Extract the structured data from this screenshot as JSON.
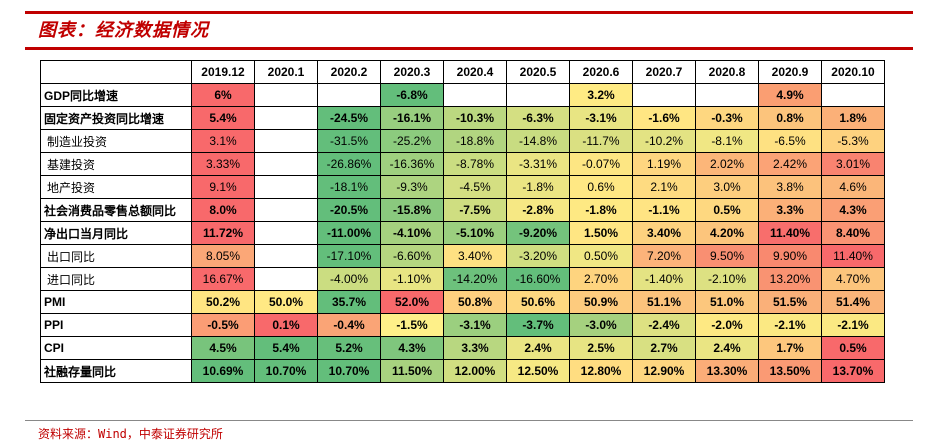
{
  "title": "图表：经济数据情况",
  "source": "资料来源：Wind，中泰证券研究所",
  "columns": [
    "2019.12",
    "2020.1",
    "2020.2",
    "2020.3",
    "2020.4",
    "2020.5",
    "2020.6",
    "2020.7",
    "2020.8",
    "2020.9",
    "2020.10"
  ],
  "rows": [
    {
      "label": "GDP同比增速",
      "bold": true,
      "cells": [
        {
          "v": "6%",
          "c": "#f8696b"
        },
        {
          "v": "",
          "c": "#ffffff"
        },
        {
          "v": "",
          "c": "#ffffff"
        },
        {
          "v": "-6.8%",
          "c": "#63be7b"
        },
        {
          "v": "",
          "c": "#ffffff"
        },
        {
          "v": "",
          "c": "#ffffff"
        },
        {
          "v": "3.2%",
          "c": "#ffeb84"
        },
        {
          "v": "",
          "c": "#ffffff"
        },
        {
          "v": "",
          "c": "#ffffff"
        },
        {
          "v": "4.9%",
          "c": "#fa9e72"
        },
        {
          "v": "",
          "c": "#ffffff"
        }
      ]
    },
    {
      "label": "固定资产投资同比增速",
      "bold": true,
      "cells": [
        {
          "v": "5.4%",
          "c": "#f8696b"
        },
        {
          "v": "",
          "c": "#ffffff"
        },
        {
          "v": "-24.5%",
          "c": "#63be7b"
        },
        {
          "v": "-16.1%",
          "c": "#98ce7f"
        },
        {
          "v": "-10.3%",
          "c": "#bbd880"
        },
        {
          "v": "-6.3%",
          "c": "#d4df82"
        },
        {
          "v": "-3.1%",
          "c": "#e8e583"
        },
        {
          "v": "-1.6%",
          "c": "#ffe683"
        },
        {
          "v": "-0.3%",
          "c": "#fed780"
        },
        {
          "v": "0.8%",
          "c": "#fcc47c"
        },
        {
          "v": "1.8%",
          "c": "#fbb078"
        }
      ]
    },
    {
      "label": "制造业投资",
      "bold": false,
      "cells": [
        {
          "v": "3.1%",
          "c": "#f8696b"
        },
        {
          "v": "",
          "c": "#ffffff"
        },
        {
          "v": "-31.5%",
          "c": "#63be7b"
        },
        {
          "v": "-25.2%",
          "c": "#8ccb7e"
        },
        {
          "v": "-18.8%",
          "c": "#b1d580"
        },
        {
          "v": "-14.8%",
          "c": "#c8dc81"
        },
        {
          "v": "-11.7%",
          "c": "#dae082"
        },
        {
          "v": "-10.2%",
          "c": "#e3e383"
        },
        {
          "v": "-8.1%",
          "c": "#f0e784"
        },
        {
          "v": "-6.5%",
          "c": "#fee182"
        },
        {
          "v": "-5.3%",
          "c": "#fed27f"
        }
      ]
    },
    {
      "label": "基建投资",
      "bold": false,
      "cells": [
        {
          "v": "3.33%",
          "c": "#f8696b"
        },
        {
          "v": "",
          "c": "#ffffff"
        },
        {
          "v": "-26.86%",
          "c": "#63be7b"
        },
        {
          "v": "-16.36%",
          "c": "#9fd07f"
        },
        {
          "v": "-8.78%",
          "c": "#cadd81"
        },
        {
          "v": "-3.31%",
          "c": "#eae583"
        },
        {
          "v": "-0.07%",
          "c": "#fde683"
        },
        {
          "v": "1.19%",
          "c": "#fed680"
        },
        {
          "v": "2.02%",
          "c": "#fcb679"
        },
        {
          "v": "2.42%",
          "c": "#fba376"
        },
        {
          "v": "3.01%",
          "c": "#f98370"
        }
      ]
    },
    {
      "label": "地产投资",
      "bold": false,
      "cells": [
        {
          "v": "9.1%",
          "c": "#f8696b"
        },
        {
          "v": "",
          "c": "#ffffff"
        },
        {
          "v": "-18.1%",
          "c": "#63be7b"
        },
        {
          "v": "-9.3%",
          "c": "#add480"
        },
        {
          "v": "-4.5%",
          "c": "#d4df82"
        },
        {
          "v": "-1.8%",
          "c": "#ebe583"
        },
        {
          "v": "0.6%",
          "c": "#ffe884"
        },
        {
          "v": "2.1%",
          "c": "#fedb81"
        },
        {
          "v": "3.0%",
          "c": "#fdce7e"
        },
        {
          "v": "3.8%",
          "c": "#fcc27c"
        },
        {
          "v": "4.6%",
          "c": "#fbb679"
        }
      ]
    },
    {
      "label": "社会消费品零售总额同比",
      "bold": true,
      "cells": [
        {
          "v": "8.0%",
          "c": "#f8696b"
        },
        {
          "v": "",
          "c": "#ffffff"
        },
        {
          "v": "-20.5%",
          "c": "#63be7b"
        },
        {
          "v": "-15.8%",
          "c": "#8ac97e"
        },
        {
          "v": "-7.5%",
          "c": "#cfde81"
        },
        {
          "v": "-2.8%",
          "c": "#f6e884"
        },
        {
          "v": "-1.8%",
          "c": "#fee983"
        },
        {
          "v": "-1.1%",
          "c": "#ffe483"
        },
        {
          "v": "0.5%",
          "c": "#fed880"
        },
        {
          "v": "3.3%",
          "c": "#fbb078"
        },
        {
          "v": "4.3%",
          "c": "#fa9f75"
        }
      ]
    },
    {
      "label": "净出口当月同比",
      "bold": true,
      "cells": [
        {
          "v": "11.72%",
          "c": "#f8696b"
        },
        {
          "v": "",
          "c": "#ffffff"
        },
        {
          "v": "-11.00%",
          "c": "#63be7b"
        },
        {
          "v": "-4.10%",
          "c": "#a5d17f"
        },
        {
          "v": "-5.10%",
          "c": "#9bcf7f"
        },
        {
          "v": "-9.20%",
          "c": "#74c37c"
        },
        {
          "v": "1.50%",
          "c": "#ffe683"
        },
        {
          "v": "3.40%",
          "c": "#fdd27f"
        },
        {
          "v": "4.20%",
          "c": "#fcc57c"
        },
        {
          "v": "11.40%",
          "c": "#f86e6c"
        },
        {
          "v": "8.40%",
          "c": "#fa9373"
        }
      ]
    },
    {
      "label": "出口同比",
      "bold": false,
      "cells": [
        {
          "v": "8.05%",
          "c": "#fba777"
        },
        {
          "v": "",
          "c": "#ffffff"
        },
        {
          "v": "-17.10%",
          "c": "#63be7b"
        },
        {
          "v": "-6.60%",
          "c": "#b5d680"
        },
        {
          "v": "3.40%",
          "c": "#fee182"
        },
        {
          "v": "-3.20%",
          "c": "#d0de81"
        },
        {
          "v": "0.50%",
          "c": "#f0e784"
        },
        {
          "v": "7.20%",
          "c": "#fcb37a"
        },
        {
          "v": "9.50%",
          "c": "#f98f72"
        },
        {
          "v": "9.90%",
          "c": "#f9896f"
        },
        {
          "v": "11.40%",
          "c": "#f8696b"
        }
      ]
    },
    {
      "label": "进口同比",
      "bold": false,
      "cells": [
        {
          "v": "16.67%",
          "c": "#f8696b"
        },
        {
          "v": "",
          "c": "#ffffff"
        },
        {
          "v": "-4.00%",
          "c": "#cbdd81"
        },
        {
          "v": "-1.10%",
          "c": "#e8e583"
        },
        {
          "v": "-14.20%",
          "c": "#6dc17c"
        },
        {
          "v": "-16.60%",
          "c": "#63be7b"
        },
        {
          "v": "2.70%",
          "c": "#fed47f"
        },
        {
          "v": "-1.40%",
          "c": "#e4e383"
        },
        {
          "v": "-2.10%",
          "c": "#dde182"
        },
        {
          "v": "13.20%",
          "c": "#f99372"
        },
        {
          "v": "4.70%",
          "c": "#fcc57c"
        }
      ]
    },
    {
      "label": "PMI",
      "bold": true,
      "cells": [
        {
          "v": "50.2%",
          "c": "#ffe582"
        },
        {
          "v": "50.0%",
          "c": "#ffe984"
        },
        {
          "v": "35.7%",
          "c": "#63be7b"
        },
        {
          "v": "52.0%",
          "c": "#f8696b"
        },
        {
          "v": "50.8%",
          "c": "#fed07f"
        },
        {
          "v": "50.6%",
          "c": "#fed880"
        },
        {
          "v": "50.9%",
          "c": "#fdcb7e"
        },
        {
          "v": "51.1%",
          "c": "#fcc37c"
        },
        {
          "v": "51.0%",
          "c": "#fcc77d"
        },
        {
          "v": "51.5%",
          "c": "#fab079"
        },
        {
          "v": "51.4%",
          "c": "#fab479"
        }
      ]
    },
    {
      "label": "PPI",
      "bold": true,
      "cells": [
        {
          "v": "-0.5%",
          "c": "#fb9d75"
        },
        {
          "v": "0.1%",
          "c": "#f8696b"
        },
        {
          "v": "-0.4%",
          "c": "#faa476"
        },
        {
          "v": "-1.5%",
          "c": "#fef089"
        },
        {
          "v": "-3.1%",
          "c": "#9bcf7f"
        },
        {
          "v": "-3.7%",
          "c": "#63be7b"
        },
        {
          "v": "-3.0%",
          "c": "#a5d17f"
        },
        {
          "v": "-2.4%",
          "c": "#dde182"
        },
        {
          "v": "-2.0%",
          "c": "#fee983"
        },
        {
          "v": "-2.1%",
          "c": "#fbe983"
        },
        {
          "v": "-2.1%",
          "c": "#fbe983"
        }
      ]
    },
    {
      "label": "CPI",
      "bold": true,
      "cells": [
        {
          "v": "4.5%",
          "c": "#78c47c"
        },
        {
          "v": "5.4%",
          "c": "#63be7b"
        },
        {
          "v": "5.2%",
          "c": "#67bf7b"
        },
        {
          "v": "4.3%",
          "c": "#7fc67d"
        },
        {
          "v": "3.3%",
          "c": "#b8d780"
        },
        {
          "v": "2.4%",
          "c": "#eae583"
        },
        {
          "v": "2.5%",
          "c": "#e7e483"
        },
        {
          "v": "2.7%",
          "c": "#d8e082"
        },
        {
          "v": "2.4%",
          "c": "#eae583"
        },
        {
          "v": "1.7%",
          "c": "#fdc77d"
        },
        {
          "v": "0.5%",
          "c": "#f8696b"
        }
      ]
    },
    {
      "label": "社融存量同比",
      "bold": true,
      "cells": [
        {
          "v": "10.69%",
          "c": "#63be7b"
        },
        {
          "v": "10.70%",
          "c": "#63be7b"
        },
        {
          "v": "10.70%",
          "c": "#63be7b"
        },
        {
          "v": "11.50%",
          "c": "#a8d27f"
        },
        {
          "v": "12.00%",
          "c": "#d1de81"
        },
        {
          "v": "12.50%",
          "c": "#f6e984"
        },
        {
          "v": "12.80%",
          "c": "#ffdd81"
        },
        {
          "v": "12.90%",
          "c": "#fed680"
        },
        {
          "v": "13.30%",
          "c": "#fbad78"
        },
        {
          "v": "13.50%",
          "c": "#fa9a74"
        },
        {
          "v": "13.70%",
          "c": "#f8696b"
        }
      ]
    }
  ]
}
